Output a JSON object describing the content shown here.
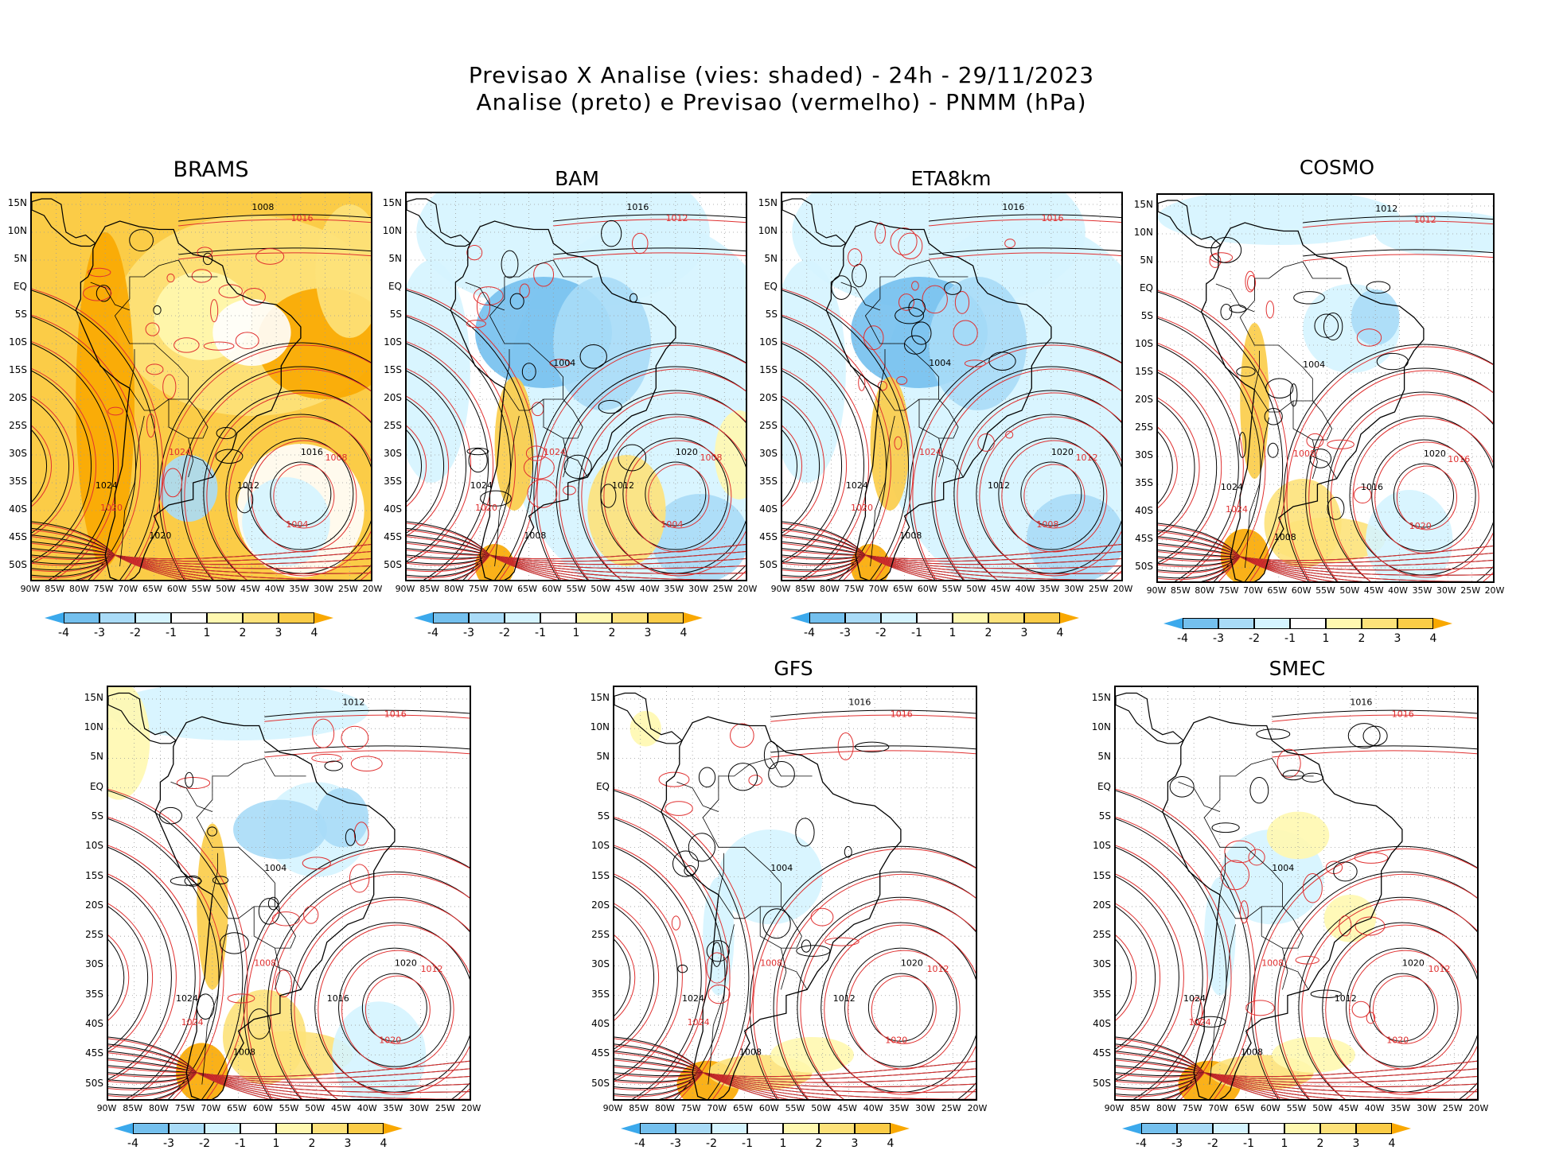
{
  "title_line1": "Previsao X Analise (vies: shaded) - 24h - 29/11/2023",
  "title_line2": "Analise (preto) e Previsao (vermelho) - PNMM (hPa)",
  "lat_labels": [
    "15N",
    "10N",
    "5N",
    "EQ",
    "5S",
    "10S",
    "15S",
    "20S",
    "25S",
    "30S",
    "35S",
    "40S",
    "45S",
    "50S"
  ],
  "lon_labels": [
    "90W",
    "85W",
    "80W",
    "75W",
    "70W",
    "65W",
    "60W",
    "55W",
    "50W",
    "45W",
    "40W",
    "35W",
    "30W",
    "25W",
    "20W"
  ],
  "colorbar": {
    "labels": [
      "-4",
      "-3",
      "-2",
      "-1",
      "1",
      "2",
      "3",
      "4"
    ],
    "colors": [
      "#3ba9ec",
      "#74c0ee",
      "#a9dbf7",
      "#d5f4ff",
      "#ffffff",
      "#fff8b0",
      "#fde27a",
      "#fbcc47",
      "#f9a800"
    ]
  },
  "colors": {
    "analysis": "#000000",
    "forecast": "#e03030",
    "grid": "#9a9a9a"
  },
  "panels": [
    {
      "id": "brams",
      "title": "BRAMS",
      "bias": "warm",
      "labels_black": [
        "1008",
        "1012",
        "1016",
        "1024",
        "1020"
      ],
      "labels_red": [
        "1016",
        "1008",
        "1004",
        "1020",
        "1024"
      ]
    },
    {
      "id": "bam",
      "title": "BAM",
      "bias": "cool",
      "labels_black": [
        "1016",
        "1012",
        "1020",
        "1024",
        "1008",
        "1004"
      ],
      "labels_red": [
        "1012",
        "1008",
        "1004",
        "1020",
        "1024"
      ]
    },
    {
      "id": "eta8km",
      "title": "ETA8km",
      "bias": "cool",
      "labels_black": [
        "1016",
        "1012",
        "1020",
        "1024",
        "1008",
        "1004"
      ],
      "labels_red": [
        "1016",
        "1012",
        "1008",
        "1020",
        "1024"
      ]
    },
    {
      "id": "cosmo",
      "title": "COSMO",
      "bias": "mixed",
      "labels_black": [
        "1012",
        "1016",
        "1020",
        "1024",
        "1008",
        "1004"
      ],
      "labels_red": [
        "1012",
        "1016",
        "1020",
        "1024",
        "1008"
      ]
    },
    {
      "id": "model5",
      "title": "",
      "bias": "mixed",
      "labels_black": [
        "1012",
        "1016",
        "1020",
        "1024",
        "1008",
        "1004"
      ],
      "labels_red": [
        "1016",
        "1012",
        "1020",
        "1024",
        "1008"
      ]
    },
    {
      "id": "gfs",
      "title": "GFS",
      "bias": "light",
      "labels_black": [
        "1016",
        "1012",
        "1020",
        "1024",
        "1008",
        "1004"
      ],
      "labels_red": [
        "1016",
        "1012",
        "1020",
        "1024",
        "1008"
      ]
    },
    {
      "id": "smec",
      "title": "SMEC",
      "bias": "light",
      "labels_black": [
        "1016",
        "1012",
        "1020",
        "1024",
        "1008",
        "1004"
      ],
      "labels_red": [
        "1016",
        "1012",
        "1020",
        "1024",
        "1008"
      ]
    }
  ]
}
